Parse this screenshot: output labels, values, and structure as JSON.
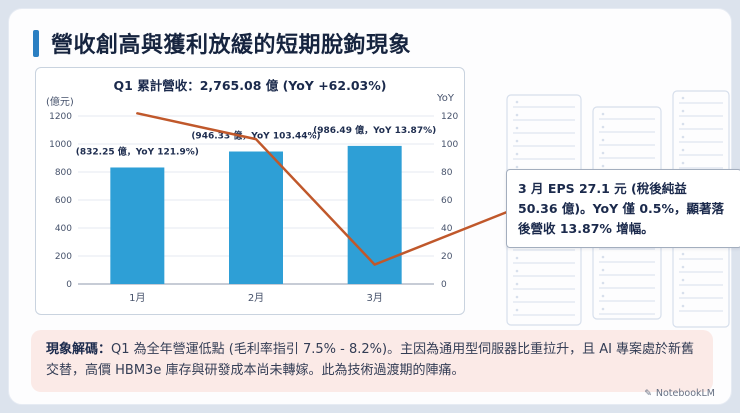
{
  "page": {
    "title": "營收創高與獲利放緩的短期脫鉤現象",
    "watermark": "NotebookLM",
    "watermark_icon": "✎"
  },
  "chart": {
    "title": "Q1 累計營收：2,765.08 億 (YoY +62.03%)",
    "left_axis_unit": "(億元)",
    "right_axis_unit": "YoY"
  },
  "chart_data": {
    "type": "bar",
    "title": "Q1 累計營收：2,765.08 億 (YoY +62.03%)",
    "categories": [
      "1月",
      "2月",
      "3月"
    ],
    "series": [
      {
        "name": "累計營收",
        "type": "bar",
        "axis": "left",
        "unit": "億元",
        "values": [
          832.25,
          946.33,
          986.49
        ],
        "color": "#2E9FD6"
      },
      {
        "name": "YoY",
        "type": "line",
        "axis": "right",
        "unit": "%",
        "values": [
          121.9,
          103.44,
          13.87
        ],
        "color": "#C0582B"
      }
    ],
    "bar_labels": [
      "(832.25 億，YoY 121.9%)",
      "(946.33 億，YoY 103.44%)",
      "(986.49 億，YoY 13.87%)"
    ],
    "left_axis": {
      "label": "(億元)",
      "min": 0,
      "max": 1200,
      "step": 200
    },
    "right_axis": {
      "label": "YoY",
      "min": 0,
      "max": 120,
      "step": 20
    },
    "grid": true,
    "legend": false
  },
  "callout": {
    "text": "3 月 EPS 27.1 元 (稅後純益 50.36 億)。YoY 僅 0.5%，顯著落後營收 13.87% 增幅。"
  },
  "decode_box": {
    "label": "現象解碼：",
    "text": "Q1 為全年營運低點 (毛利率指引 7.5% - 8.2%)。主因為通用型伺服器比重拉升，且 AI 專案處於新舊交替，高價 HBM3e 庫存與研發成本尚未轉嫁。此為技術過渡期的陣痛。"
  },
  "colors": {
    "bar": "#2E9FD6",
    "line": "#C0582B",
    "accent": "#2B7FC2",
    "title": "#16243F",
    "decode_bg": "#FBEAE7"
  }
}
